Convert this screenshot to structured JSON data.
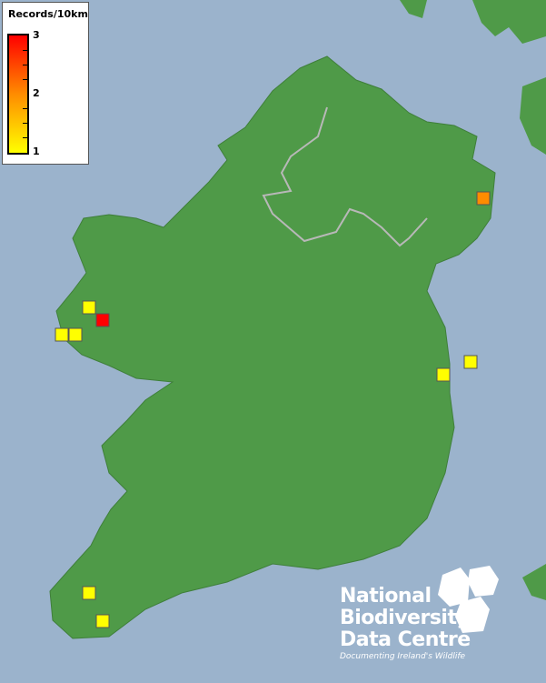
{
  "legend": {
    "title": "Records/10km",
    "max_label": "3",
    "mid_label": "2",
    "min_label": "1",
    "color_low": "#ffff00",
    "color_mid": "#ff8c00",
    "color_high": "#ff0000"
  },
  "map": {
    "sea_color": "#9bb3cc",
    "land_color": "#4f9a48",
    "records": [
      {
        "value": 1
      },
      {
        "value": 3
      },
      {
        "value": 1
      },
      {
        "value": 1
      },
      {
        "value": 2
      },
      {
        "value": 1
      },
      {
        "value": 1
      },
      {
        "value": 1
      },
      {
        "value": 1
      }
    ]
  },
  "logo": {
    "line1": "National",
    "line2": "Biodiversity",
    "line3": "Data Centre",
    "tagline": "Documenting Ireland's Wildlife"
  }
}
